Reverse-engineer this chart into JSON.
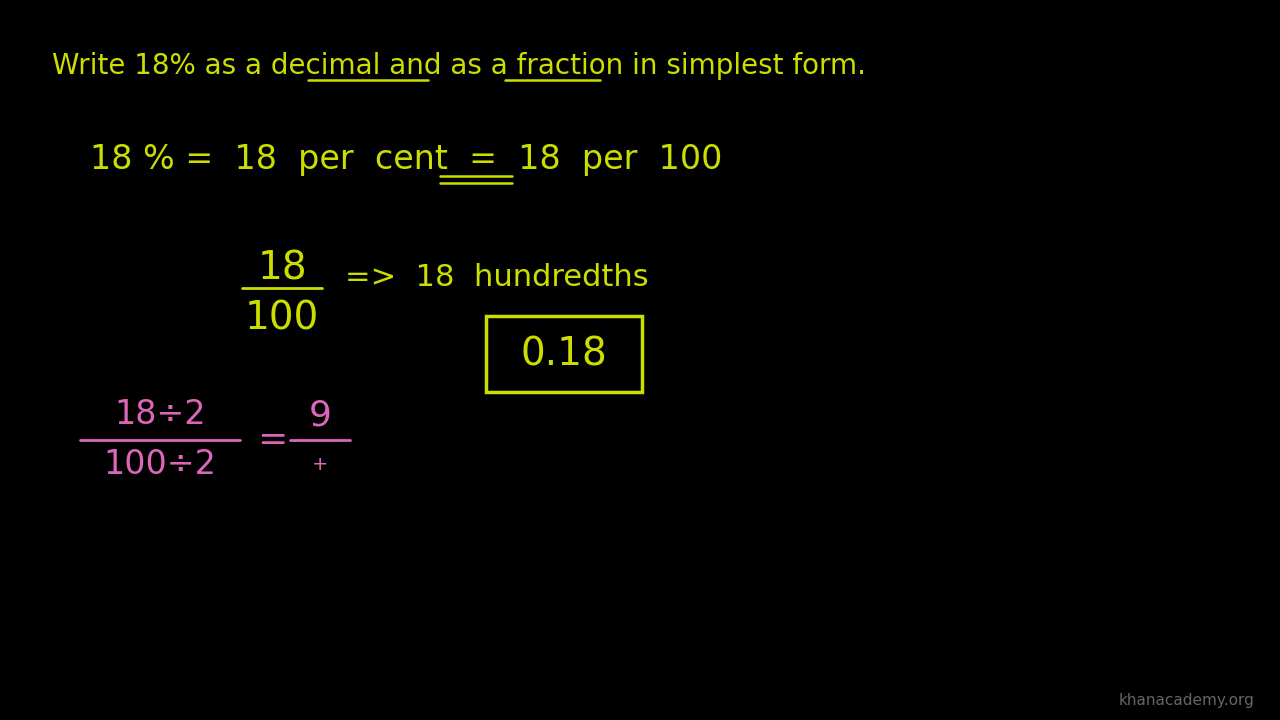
{
  "background_color": "#000000",
  "yellow_color": "#ccdd00",
  "pink_color": "#dd66bb",
  "watermark": "khanacademy.org",
  "watermark_color": "#666666",
  "title_text": "Write 18% as a decimal and as a fraction in simplest form.",
  "fig_width": 12.8,
  "fig_height": 7.2,
  "dpi": 100
}
